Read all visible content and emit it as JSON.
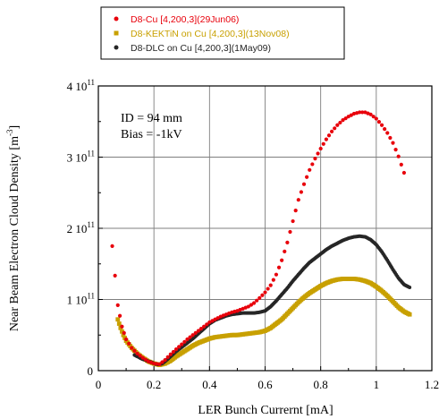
{
  "chart_data": {
    "type": "scatter",
    "xlabel": "LER Bunch Currernt [mA]",
    "ylabel": {
      "main": "Near Beam Electron Cloud Density [m",
      "exp": "-3",
      "close": "]"
    },
    "xlim": [
      0,
      1.2
    ],
    "ylim": [
      0,
      400000000000.0
    ],
    "x_ticks": [
      {
        "value": 0,
        "label": "0"
      },
      {
        "value": 0.2,
        "label": "0.2"
      },
      {
        "value": 0.4,
        "label": "0.4"
      },
      {
        "value": 0.6,
        "label": "0.6"
      },
      {
        "value": 0.8,
        "label": "0.8"
      },
      {
        "value": 1.0,
        "label": "1"
      },
      {
        "value": 1.2,
        "label": "1.2"
      }
    ],
    "y_ticks": [
      {
        "value": 0,
        "mant": "0",
        "exp": ""
      },
      {
        "value": 100000000000.0,
        "mant": "1 10",
        "exp": "11"
      },
      {
        "value": 200000000000.0,
        "mant": "2 10",
        "exp": "11"
      },
      {
        "value": 300000000000.0,
        "mant": "3 10",
        "exp": "11"
      },
      {
        "value": 400000000000.0,
        "mant": "4 10",
        "exp": "11"
      }
    ],
    "grid": true,
    "legend_position": "top",
    "annotations": [
      "ID = 94 mm",
      "Bias = -1kV"
    ],
    "series": [
      {
        "name": "D8-Cu [4,200,3](29Jun06)",
        "color": "#e8000b",
        "marker": "circle",
        "x": [
          0.05,
          0.07,
          0.085,
          0.1,
          0.12,
          0.14,
          0.16,
          0.18,
          0.2,
          0.22,
          0.24,
          0.26,
          0.28,
          0.3,
          0.32,
          0.34,
          0.36,
          0.38,
          0.4,
          0.42,
          0.44,
          0.46,
          0.48,
          0.5,
          0.52,
          0.54,
          0.56,
          0.58,
          0.6,
          0.62,
          0.64,
          0.66,
          0.68,
          0.7,
          0.72,
          0.74,
          0.76,
          0.78,
          0.8,
          0.82,
          0.84,
          0.86,
          0.88,
          0.9,
          0.92,
          0.94,
          0.96,
          0.98,
          1.0,
          1.02,
          1.04,
          1.06,
          1.08,
          1.1
        ],
        "y": [
          175000000000.0,
          92000000000.0,
          62000000000.0,
          44000000000.0,
          32000000000.0,
          24000000000.0,
          18000000000.0,
          13000000000.0,
          10000000000.0,
          9000000000.0,
          15000000000.0,
          23000000000.0,
          30000000000.0,
          37000000000.0,
          44000000000.0,
          50000000000.0,
          56000000000.0,
          62000000000.0,
          68000000000.0,
          72000000000.0,
          76000000000.0,
          79000000000.0,
          82000000000.0,
          84000000000.0,
          87000000000.0,
          90000000000.0,
          95000000000.0,
          102000000000.0,
          110000000000.0,
          120000000000.0,
          135000000000.0,
          155000000000.0,
          180000000000.0,
          210000000000.0,
          240000000000.0,
          262000000000.0,
          282000000000.0,
          298000000000.0,
          312000000000.0,
          325000000000.0,
          336000000000.0,
          345000000000.0,
          352000000000.0,
          357000000000.0,
          361000000000.0,
          363000000000.0,
          363000000000.0,
          360000000000.0,
          354000000000.0,
          345000000000.0,
          334000000000.0,
          320000000000.0,
          301000000000.0,
          278000000000.0
        ]
      },
      {
        "name": "D8-KEKTiN on Cu [4,200,3](13Nov08)",
        "color": "#c8a000",
        "marker": "square",
        "x": [
          0.07,
          0.08,
          0.09,
          0.1,
          0.12,
          0.14,
          0.16,
          0.18,
          0.2,
          0.22,
          0.24,
          0.26,
          0.28,
          0.3,
          0.32,
          0.34,
          0.36,
          0.38,
          0.4,
          0.42,
          0.44,
          0.46,
          0.48,
          0.5,
          0.52,
          0.54,
          0.56,
          0.58,
          0.6,
          0.62,
          0.64,
          0.66,
          0.68,
          0.7,
          0.72,
          0.74,
          0.76,
          0.78,
          0.8,
          0.82,
          0.84,
          0.86,
          0.88,
          0.9,
          0.92,
          0.94,
          0.96,
          0.98,
          1.0,
          1.02,
          1.04,
          1.06,
          1.08,
          1.1,
          1.12
        ],
        "y": [
          72000000000.0,
          60000000000.0,
          50000000000.0,
          42000000000.0,
          32000000000.0,
          24000000000.0,
          18000000000.0,
          13000000000.0,
          10000000000.0,
          8000000000.0,
          10000000000.0,
          14000000000.0,
          20000000000.0,
          25000000000.0,
          30000000000.0,
          35000000000.0,
          39000000000.0,
          42000000000.0,
          45000000000.0,
          47000000000.0,
          48000000000.0,
          49000000000.0,
          50000000000.0,
          50000000000.0,
          51000000000.0,
          52000000000.0,
          53000000000.0,
          54000000000.0,
          56000000000.0,
          60000000000.0,
          66000000000.0,
          72000000000.0,
          80000000000.0,
          88000000000.0,
          96000000000.0,
          103000000000.0,
          109000000000.0,
          114000000000.0,
          119000000000.0,
          123000000000.0,
          126000000000.0,
          128000000000.0,
          129000000000.0,
          129000000000.0,
          129000000000.0,
          128000000000.0,
          126000000000.0,
          123000000000.0,
          118000000000.0,
          112000000000.0,
          105000000000.0,
          97000000000.0,
          89000000000.0,
          83000000000.0,
          79000000000.0
        ]
      },
      {
        "name": "D8-DLC on Cu [4,200,3](1May09)",
        "color": "#262626",
        "marker": "circle",
        "x": [
          0.13,
          0.14,
          0.15,
          0.16,
          0.17,
          0.18,
          0.19,
          0.2,
          0.21,
          0.22,
          0.23,
          0.24,
          0.26,
          0.28,
          0.3,
          0.32,
          0.34,
          0.36,
          0.38,
          0.4,
          0.42,
          0.44,
          0.46,
          0.48,
          0.5,
          0.52,
          0.54,
          0.56,
          0.58,
          0.6,
          0.62,
          0.64,
          0.66,
          0.68,
          0.7,
          0.72,
          0.74,
          0.76,
          0.78,
          0.8,
          0.82,
          0.84,
          0.86,
          0.88,
          0.9,
          0.92,
          0.94,
          0.96,
          0.98,
          1.0,
          1.02,
          1.04,
          1.06,
          1.08,
          1.1,
          1.12
        ],
        "y": [
          22000000000.0,
          20000000000.0,
          18000000000.0,
          16000000000.0,
          15000000000.0,
          13000000000.0,
          12000000000.0,
          10000000000.0,
          9000000000.0,
          9000000000.0,
          10000000000.0,
          13000000000.0,
          20000000000.0,
          27000000000.0,
          33000000000.0,
          39000000000.0,
          45000000000.0,
          52000000000.0,
          59000000000.0,
          66000000000.0,
          71000000000.0,
          74000000000.0,
          77000000000.0,
          79000000000.0,
          80000000000.0,
          81000000000.0,
          81000000000.0,
          81000000000.0,
          82000000000.0,
          84000000000.0,
          90000000000.0,
          98000000000.0,
          107000000000.0,
          116000000000.0,
          126000000000.0,
          135000000000.0,
          144000000000.0,
          152000000000.0,
          158000000000.0,
          164000000000.0,
          170000000000.0,
          175000000000.0,
          179000000000.0,
          183000000000.0,
          186000000000.0,
          188000000000.0,
          189000000000.0,
          188000000000.0,
          184000000000.0,
          177000000000.0,
          167000000000.0,
          155000000000.0,
          142000000000.0,
          130000000000.0,
          121000000000.0,
          117000000000.0
        ]
      }
    ]
  }
}
